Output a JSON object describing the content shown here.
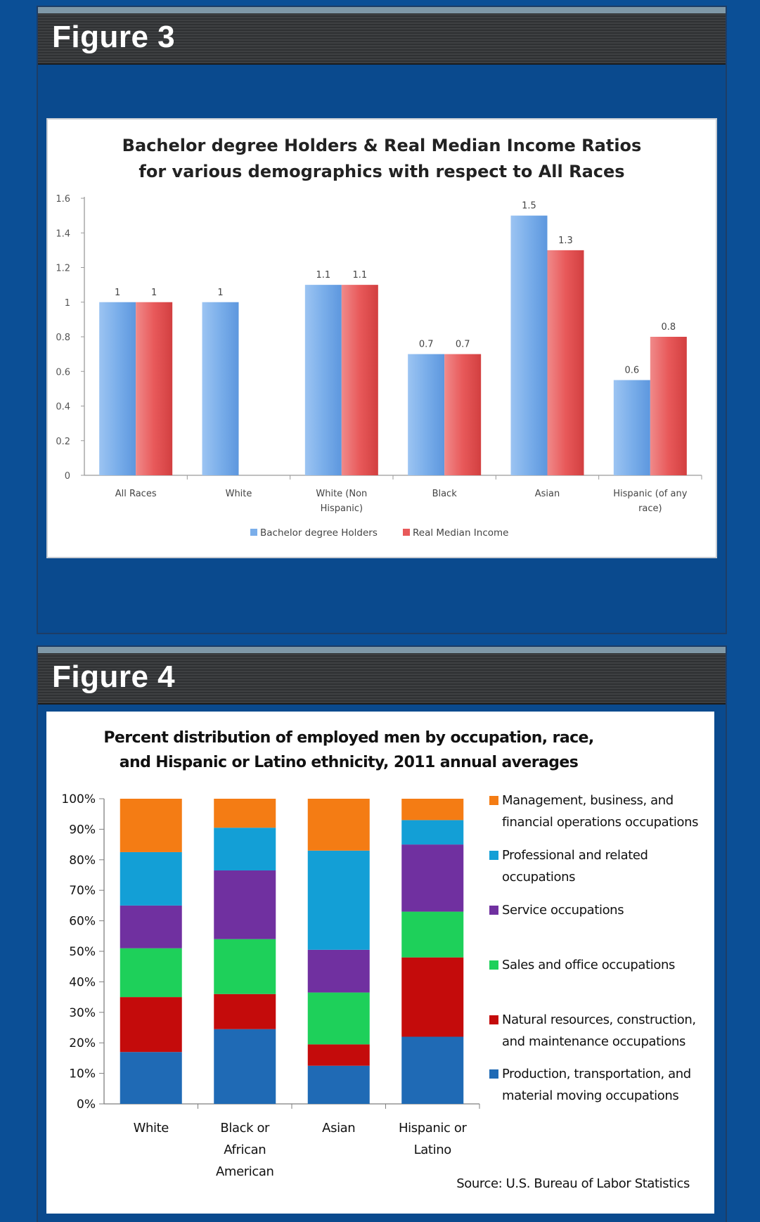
{
  "figures": {
    "fig3_label": "Figure 3",
    "fig4_label": "Figure 4"
  },
  "colors": {
    "background": "#0b4f96",
    "bachelor": "#7aaeea",
    "income": "#e8595a"
  },
  "chart_data": [
    {
      "type": "bar",
      "title_line1": "Bachelor degree Holders & Real Median Income Ratios",
      "title_line2": "for various demographics with respect to All Races",
      "categories": [
        "All Races",
        "White",
        "White (Non Hispanic)",
        "Black",
        "Asian",
        "Hispanic (of any race)"
      ],
      "category_lines": [
        [
          "All Races"
        ],
        [
          "White"
        ],
        [
          "White (Non",
          "Hispanic)"
        ],
        [
          "Black"
        ],
        [
          "Asian"
        ],
        [
          "Hispanic (of any",
          "race)"
        ]
      ],
      "series": [
        {
          "name": "Bachelor degree Holders",
          "color": "#7aaeea",
          "values": [
            1,
            1,
            1.1,
            0.7,
            1.5,
            0.55
          ],
          "labels": [
            "1",
            "1",
            "1.1",
            "0.7",
            "1.5",
            "0.6"
          ]
        },
        {
          "name": "Real Median Income",
          "color": "#e8595a",
          "values": [
            1,
            null,
            1.1,
            0.7,
            1.3,
            0.8
          ],
          "labels": [
            "1",
            "",
            "1.1",
            "0.7",
            "1.3",
            "0.8"
          ]
        }
      ],
      "ylim": [
        0,
        1.6
      ],
      "yticks": [
        0,
        0.2,
        0.4,
        0.6,
        0.8,
        1,
        1.2,
        1.4,
        1.6
      ],
      "ytick_labels": [
        "0",
        "0.2",
        "0.4",
        "0.6",
        "0.8",
        "1",
        "1.2",
        "1.4",
        "1.6"
      ],
      "legend_position": "bottom"
    },
    {
      "type": "bar",
      "stacked": true,
      "title_line1": "Percent distribution of employed men by occupation, race,",
      "title_line2": "and Hispanic or Latino ethnicity, 2011 annual averages",
      "categories": [
        "White",
        "Black or African American",
        "Asian",
        "Hispanic or Latino"
      ],
      "category_lines": [
        [
          "White"
        ],
        [
          "Black or",
          "African",
          "American"
        ],
        [
          "Asian"
        ],
        [
          "Hispanic or",
          "Latino"
        ]
      ],
      "series": [
        {
          "name": "Production, transportation, and material moving occupations",
          "legend_lines": [
            "Production, transportation, and",
            "material moving occupations"
          ],
          "color": "#1f6ab5",
          "values": [
            17,
            24.5,
            12.5,
            22
          ]
        },
        {
          "name": "Natural resources, construction, and maintenance occupations",
          "legend_lines": [
            "Natural resources, construction,",
            "and maintenance occupations"
          ],
          "color": "#c40b0b",
          "values": [
            18,
            11.5,
            7,
            26
          ]
        },
        {
          "name": "Sales and office occupations",
          "legend_lines": [
            "Sales and office occupations"
          ],
          "color": "#1ed05a",
          "values": [
            16,
            18,
            17,
            15
          ]
        },
        {
          "name": "Service occupations",
          "legend_lines": [
            "Service occupations"
          ],
          "color": "#7030a0",
          "values": [
            14,
            22.5,
            14,
            22
          ]
        },
        {
          "name": "Professional and related occupations",
          "legend_lines": [
            "Professional and related",
            "occupations"
          ],
          "color": "#139fd6",
          "values": [
            17.5,
            14,
            32.5,
            8
          ]
        },
        {
          "name": "Management, business, and financial operations occupations",
          "legend_lines": [
            "Management, business, and",
            "financial operations occupations"
          ],
          "color": "#f47c14",
          "values": [
            17.5,
            9.5,
            17,
            7
          ]
        }
      ],
      "ylim": [
        0,
        100
      ],
      "ytick_labels": [
        "0%",
        "10%",
        "20%",
        "30%",
        "40%",
        "50%",
        "60%",
        "70%",
        "80%",
        "90%",
        "100%"
      ],
      "legend_position": "right",
      "source": "Source: U.S. Bureau of Labor Statistics"
    }
  ]
}
